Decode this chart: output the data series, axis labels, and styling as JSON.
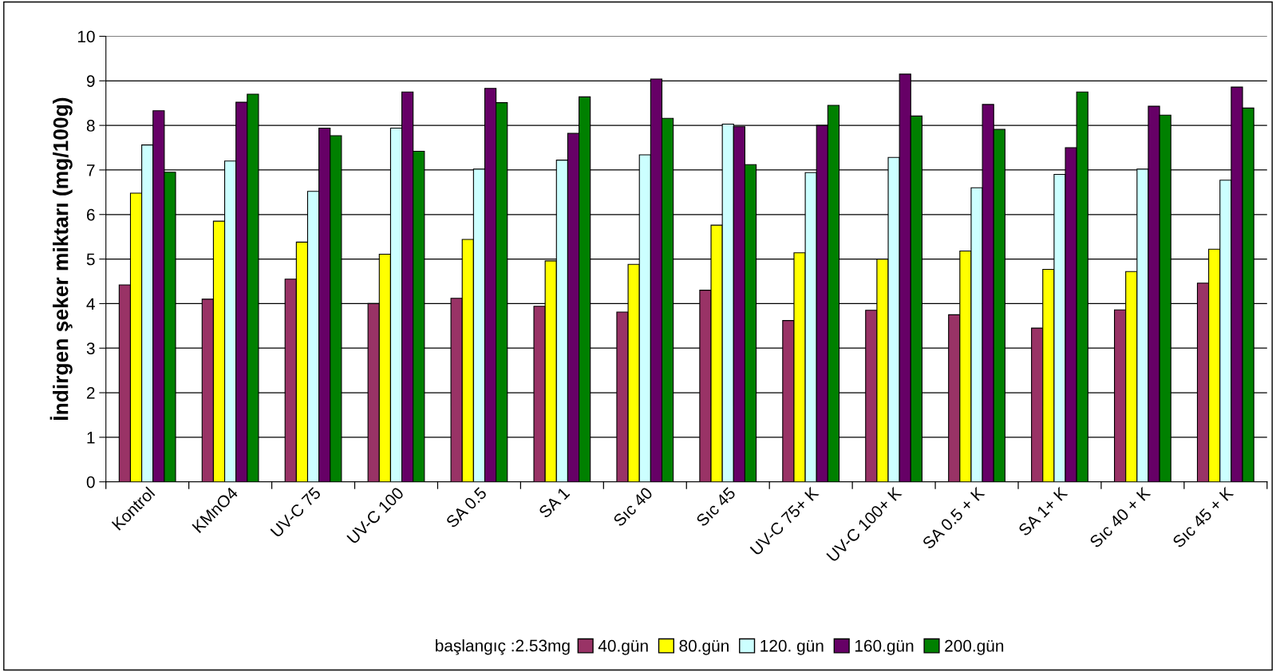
{
  "chart_data": {
    "type": "bar",
    "ylabel": "İndirgen şeker miktarı (mg/100g)",
    "legend_title": "başlangıç :2.53mg",
    "categories": [
      "Kontrol",
      "KMnO4",
      "UV-C 75",
      "UV-C 100",
      "SA 0.5",
      "SA 1",
      "Sıc 40",
      "Sıc 45",
      "UV-C 75+ K",
      "UV-C 100+ K",
      "SA 0.5 + K",
      "SA 1+ K",
      "Sıc 40 + K",
      "Sıc 45 + K"
    ],
    "series": [
      {
        "name": "40.gün",
        "color": "#993366",
        "values": [
          4.42,
          4.1,
          4.55,
          4.0,
          4.12,
          3.94,
          3.81,
          4.3,
          3.62,
          3.85,
          3.75,
          3.45,
          3.86,
          4.46
        ]
      },
      {
        "name": "80.gün",
        "color": "#ffff00",
        "values": [
          6.48,
          5.85,
          5.38,
          5.11,
          5.44,
          4.96,
          4.88,
          5.76,
          5.14,
          5.0,
          5.18,
          4.77,
          4.72,
          5.22
        ]
      },
      {
        "name": "120. gün",
        "color": "#ccffff",
        "values": [
          7.56,
          7.2,
          6.52,
          7.94,
          7.02,
          7.22,
          7.34,
          8.03,
          6.94,
          7.28,
          6.6,
          6.9,
          7.02,
          6.77
        ]
      },
      {
        "name": "160.gün",
        "color": "#660066",
        "values": [
          8.33,
          8.52,
          7.94,
          8.75,
          8.83,
          7.82,
          9.04,
          7.97,
          8.0,
          9.15,
          8.47,
          7.5,
          8.43,
          8.86
        ]
      },
      {
        "name": "200.gün",
        "color": "#008000",
        "values": [
          6.95,
          8.7,
          7.77,
          7.42,
          8.51,
          8.64,
          8.16,
          7.12,
          8.45,
          8.21,
          7.91,
          8.75,
          8.23,
          8.39
        ]
      }
    ],
    "ylim": [
      0,
      10
    ],
    "yticks": [
      0,
      1,
      2,
      3,
      4,
      5,
      6,
      7,
      8,
      9,
      10
    ],
    "grid": "y",
    "legend": "bottom"
  }
}
